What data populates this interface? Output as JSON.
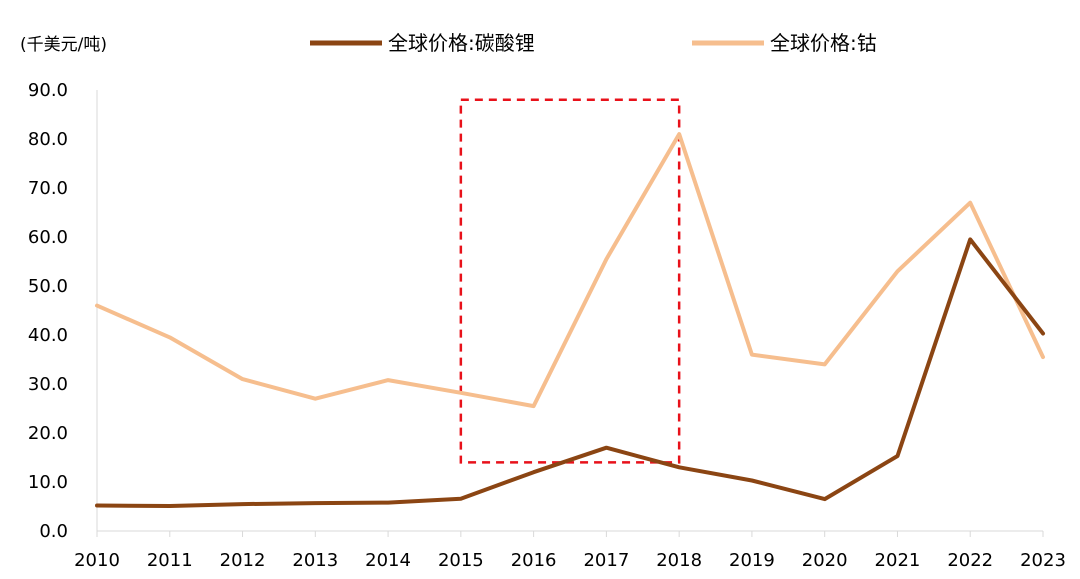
{
  "chart_data": {
    "type": "line",
    "unit_label": "(千美元/吨)",
    "categories": [
      "2010",
      "2011",
      "2012",
      "2013",
      "2014",
      "2015",
      "2016",
      "2017",
      "2018",
      "2019",
      "2020",
      "2021",
      "2022",
      "2023"
    ],
    "ylim": [
      0,
      90
    ],
    "yticks": [
      "0.0",
      "10.0",
      "20.0",
      "30.0",
      "40.0",
      "50.0",
      "60.0",
      "70.0",
      "80.0",
      "90.0"
    ],
    "series": [
      {
        "name": "全球价格:碳酸锂",
        "color": "#8B4513",
        "values": [
          5.2,
          5.1,
          5.5,
          5.7,
          5.8,
          6.6,
          12.0,
          17.0,
          13.0,
          10.3,
          6.5,
          15.3,
          59.5,
          40.3
        ]
      },
      {
        "name": "全球价格:钴",
        "color": "#F6BE8E",
        "values": [
          46.0,
          39.5,
          31.0,
          27.0,
          30.8,
          28.2,
          25.5,
          55.5,
          81.0,
          36.0,
          34.0,
          53.0,
          67.0,
          35.5
        ]
      }
    ],
    "highlight": {
      "style": "dashed-box",
      "color": "#E8111A",
      "x_from": "2015",
      "x_to": "2018",
      "y_from": 14,
      "y_to": 88
    },
    "grid": false,
    "legend": "top"
  }
}
